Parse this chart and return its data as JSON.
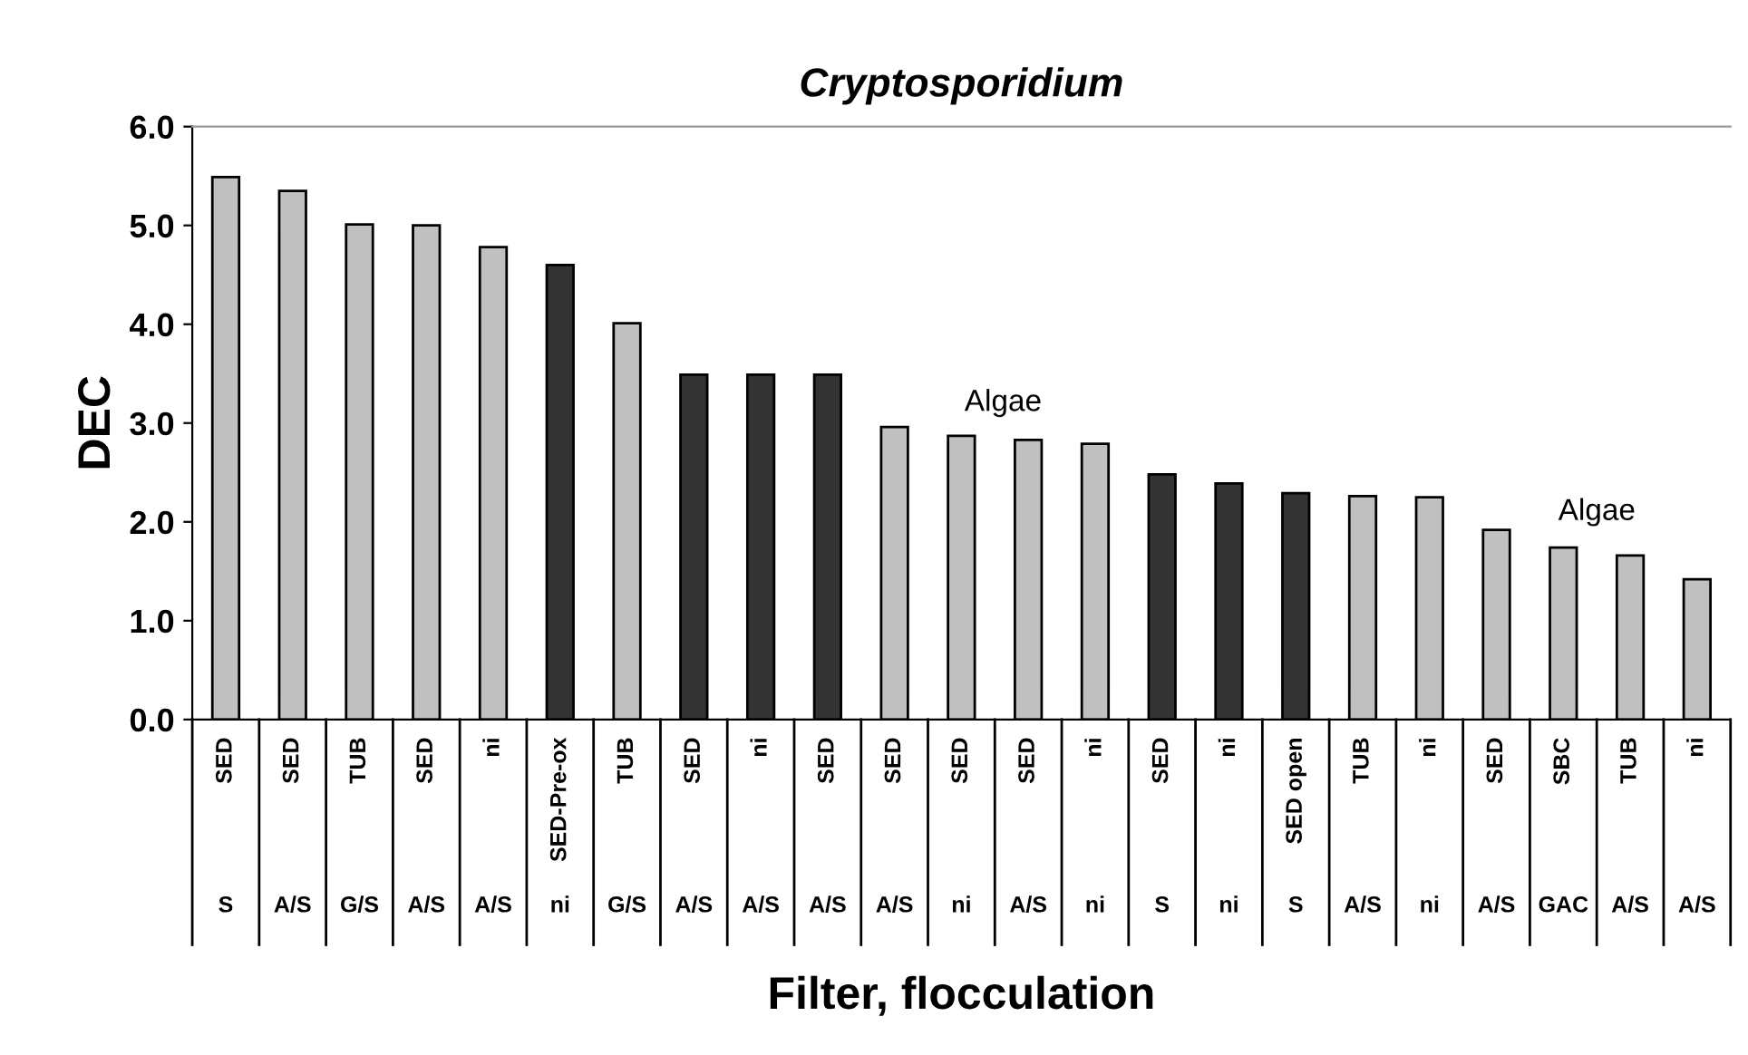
{
  "chart_data": {
    "type": "bar",
    "title": "Cryptosporidium",
    "xlabel": "Filter, flocculation",
    "ylabel": "DEC",
    "categories": [
      "SED",
      "SED",
      "TUB",
      "SED",
      "ni",
      "SED-Pre-ox",
      "TUB",
      "SED",
      "ni",
      "SED",
      "SED",
      "SED",
      "SED",
      "ni",
      "SED",
      "ni",
      "SED open",
      "TUB",
      "ni",
      "SED",
      "SBC",
      "TUB",
      "ni"
    ],
    "values": [
      5.49,
      5.35,
      5.01,
      5.0,
      4.78,
      4.6,
      4.01,
      3.49,
      3.49,
      3.49,
      2.96,
      2.87,
      2.83,
      2.79,
      2.48,
      2.39,
      2.29,
      2.26,
      2.25,
      1.92,
      1.74,
      1.66,
      1.42
    ],
    "colors": [
      "#c0c0c0",
      "#c0c0c0",
      "#c0c0c0",
      "#c0c0c0",
      "#c0c0c0",
      "#333333",
      "#c0c0c0",
      "#333333",
      "#333333",
      "#333333",
      "#c0c0c0",
      "#c0c0c0",
      "#c0c0c0",
      "#c0c0c0",
      "#333333",
      "#333333",
      "#333333",
      "#c0c0c0",
      "#c0c0c0",
      "#c0c0c0",
      "#c0c0c0",
      "#c0c0c0",
      "#c0c0c0"
    ],
    "annotations": [
      "S",
      "A/S",
      "G/S",
      "A/S",
      "A/S",
      "ni",
      "G/S",
      "A/S",
      "A/S",
      "A/S",
      "A/S",
      "ni",
      "A/S",
      "ni",
      "S",
      "ni",
      "S",
      "A/S",
      "ni",
      "A/S",
      "GAC",
      "A/S",
      "A/S",
      "Algae",
      "Algae"
    ],
    "ylim": [
      0,
      6
    ],
    "yticks": [
      {
        "value": 0,
        "label": "0.0"
      },
      {
        "value": 1,
        "label": "1.0"
      },
      {
        "value": 2,
        "label": "2.0"
      },
      {
        "value": 3,
        "label": "3.0"
      },
      {
        "value": 4,
        "label": "4.0"
      },
      {
        "value": 5,
        "label": "5.0"
      },
      {
        "value": 6,
        "label": "6.0"
      }
    ],
    "grid": false,
    "legend": false
  }
}
